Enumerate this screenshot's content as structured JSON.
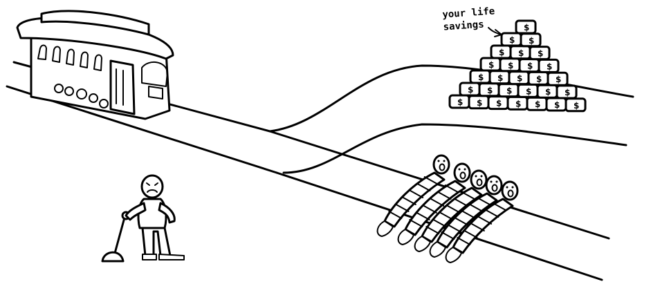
{
  "caption": {
    "line1": "your life",
    "line2": "savings"
  },
  "icons": {
    "trolley": "trolley-icon",
    "lever": "lever-icon",
    "savings": "money-stack-icon",
    "people": "tied-people-icon"
  },
  "colors": {
    "ink": "#000000",
    "background": "#ffffff"
  }
}
